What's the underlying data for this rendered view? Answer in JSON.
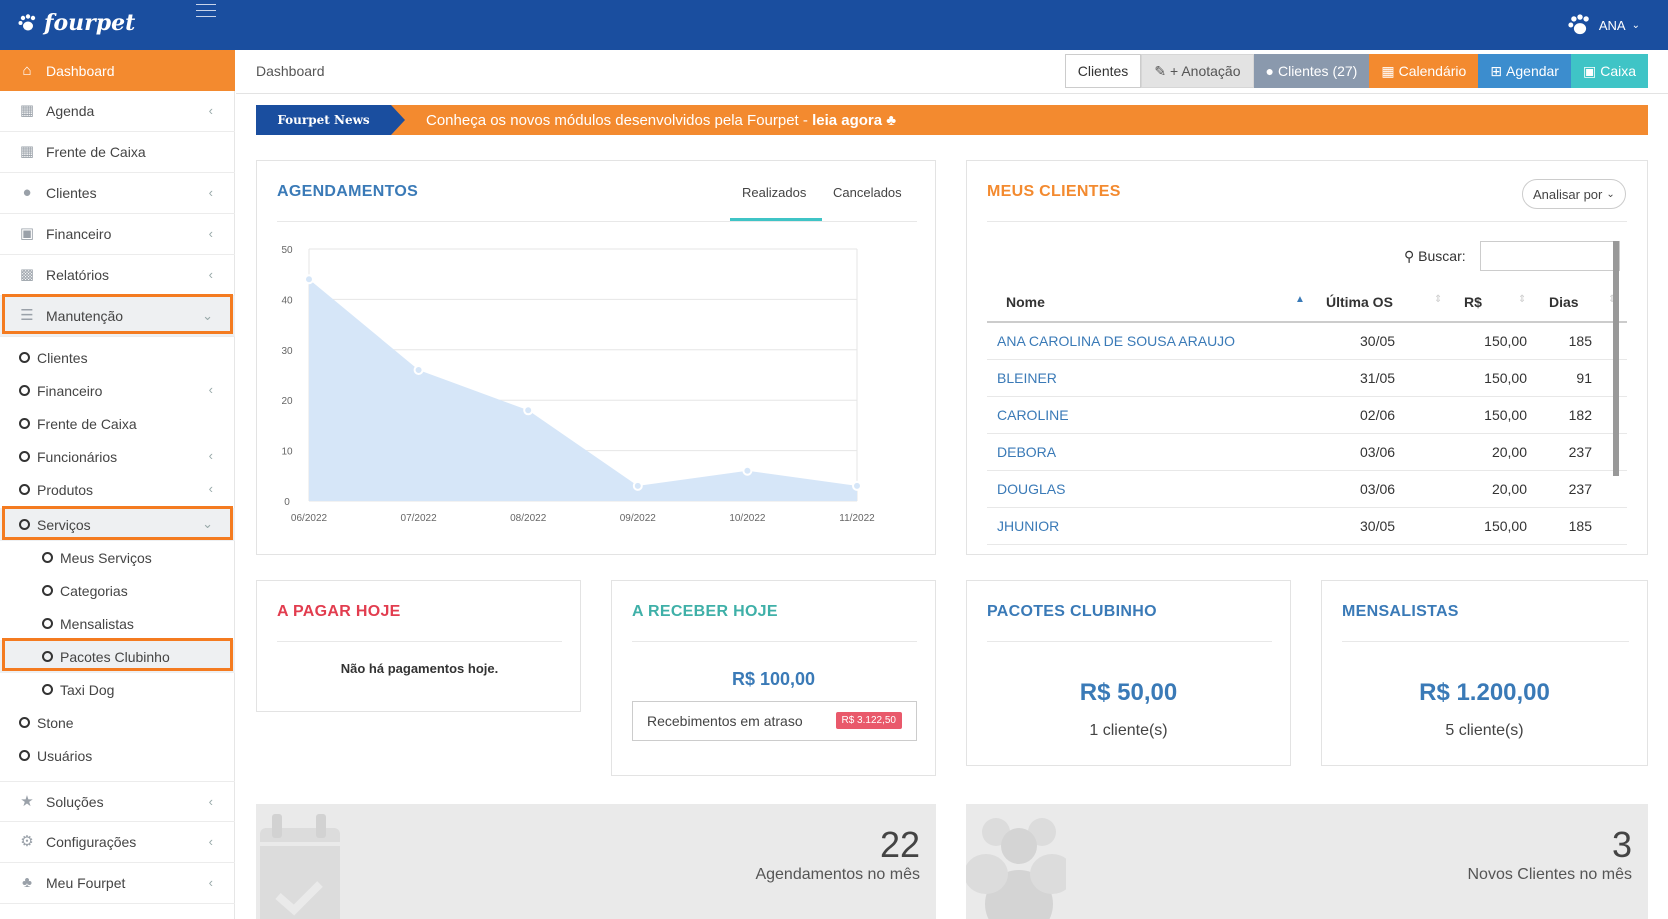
{
  "app": {
    "logo": "fourpet",
    "user": "ANA"
  },
  "colors": {
    "topbar": "#1a4e9f",
    "accent": "#f38a2f",
    "teal": "#3fc4c6",
    "blue": "#3c8dce",
    "link": "#3a7ab7"
  },
  "sidebar": {
    "items": [
      {
        "label": "Dashboard",
        "icon": "home-icon"
      },
      {
        "label": "Agenda",
        "icon": "calendar-icon"
      },
      {
        "label": "Frente de Caixa",
        "icon": "grid-icon"
      },
      {
        "label": "Clientes",
        "icon": "users-icon"
      },
      {
        "label": "Financeiro",
        "icon": "money-icon"
      },
      {
        "label": "Relatórios",
        "icon": "bar-chart-icon"
      },
      {
        "label": "Manutenção",
        "icon": "database-icon"
      }
    ],
    "sub_items": [
      {
        "label": "Clientes"
      },
      {
        "label": "Financeiro"
      },
      {
        "label": "Frente de Caixa"
      },
      {
        "label": "Funcionários"
      },
      {
        "label": "Produtos"
      },
      {
        "label": "Serviços"
      },
      {
        "label": "Meus Serviços"
      },
      {
        "label": "Categorias"
      },
      {
        "label": "Mensalistas"
      },
      {
        "label": "Pacotes Clubinho"
      },
      {
        "label": "Taxi Dog"
      },
      {
        "label": "Stone"
      },
      {
        "label": "Usuários"
      }
    ],
    "bottom_items": [
      {
        "label": "Soluções",
        "icon": "star-icon"
      },
      {
        "label": "Configurações",
        "icon": "gears-icon"
      },
      {
        "label": "Meu Fourpet",
        "icon": "paw-icon"
      }
    ]
  },
  "header": {
    "breadcrumb": "Dashboard",
    "buttons": [
      {
        "label": "Clientes"
      },
      {
        "label": "+ Anotação"
      },
      {
        "label": "Clientes (27)"
      },
      {
        "label": "Calendário"
      },
      {
        "label": "Agendar"
      },
      {
        "label": "Caixa"
      }
    ]
  },
  "news": {
    "tag": "Fourpet News",
    "text": "Conheça os novos módulos desenvolvidos pela Fourpet - ",
    "link": "leia agora"
  },
  "agendamentos": {
    "title": "AGENDAMENTOS",
    "tabs": [
      "Realizados",
      "Cancelados"
    ],
    "chart_data": {
      "type": "area",
      "categories": [
        "06/2022",
        "07/2022",
        "08/2022",
        "09/2022",
        "10/2022",
        "11/2022"
      ],
      "values": [
        44,
        26,
        18,
        3,
        6,
        3
      ],
      "ylim": [
        0,
        50
      ],
      "yticks": [
        0,
        10,
        20,
        30,
        40,
        50
      ],
      "grid": true
    }
  },
  "meus_clientes": {
    "title": "MEUS CLIENTES",
    "analisar": "Analisar por",
    "search_label": "Buscar:",
    "columns": [
      "Nome",
      "Última OS",
      "R$",
      "Dias"
    ],
    "rows": [
      {
        "nome": "ANA CAROLINA DE SOUSA ARAUJO",
        "os": "30/05",
        "rs": "150,00",
        "dias": "185"
      },
      {
        "nome": "BLEINER",
        "os": "31/05",
        "rs": "150,00",
        "dias": "91"
      },
      {
        "nome": "CAROLINE",
        "os": "02/06",
        "rs": "150,00",
        "dias": "182"
      },
      {
        "nome": "DEBORA",
        "os": "03/06",
        "rs": "20,00",
        "dias": "237"
      },
      {
        "nome": "DOUGLAS",
        "os": "03/06",
        "rs": "20,00",
        "dias": "237"
      },
      {
        "nome": "JHUNIOR",
        "os": "30/05",
        "rs": "150,00",
        "dias": "185"
      }
    ]
  },
  "pagar": {
    "title": "A PAGAR HOJE",
    "msg": "Não há pagamentos hoje."
  },
  "receber": {
    "title": "A RECEBER HOJE",
    "value": "R$ 100,00",
    "atraso_label": "Recebimentos em atraso",
    "atraso_value": "R$ 3.122,50"
  },
  "clubinho": {
    "title": "PACOTES CLUBINHO",
    "value": "R$ 50,00",
    "sub": "1 cliente(s)"
  },
  "mensalistas": {
    "title": "MENSALISTAS",
    "value": "R$ 1.200,00",
    "sub": "5 cliente(s)"
  },
  "stats": [
    {
      "number": "22",
      "label": "Agendamentos no mês",
      "icon": "calendar-check-icon"
    },
    {
      "number": "3",
      "label": "Novos Clientes no mês",
      "icon": "users-icon"
    }
  ]
}
